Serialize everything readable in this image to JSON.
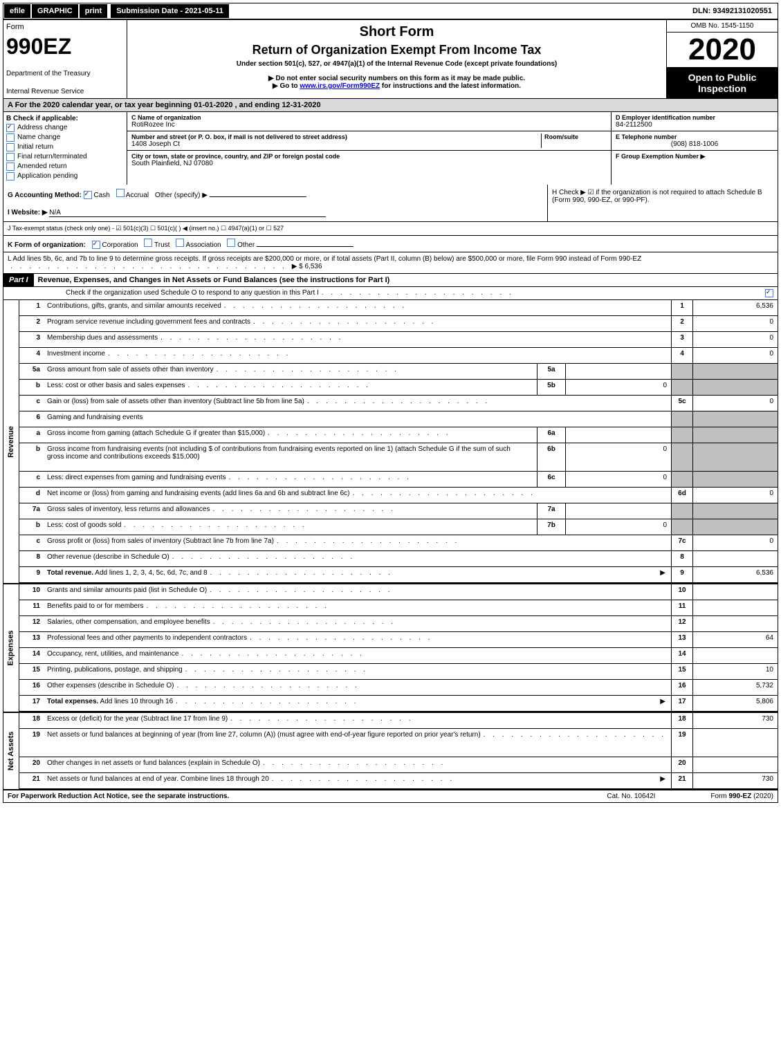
{
  "top": {
    "efile": "efile",
    "graphic": "GRAPHIC",
    "print": "print",
    "submission": "Submission Date - 2021-05-11",
    "dln": "DLN: 93492131020551"
  },
  "header": {
    "form_word": "Form",
    "form_no": "990EZ",
    "dept1": "Department of the Treasury",
    "dept2": "Internal Revenue Service",
    "short_form": "Short Form",
    "main_title": "Return of Organization Exempt From Income Tax",
    "under": "Under section 501(c), 527, or 4947(a)(1) of the Internal Revenue Code (except private foundations)",
    "ssn": "▶ Do not enter social security numbers on this form as it may be made public.",
    "goto_pre": "▶ Go to ",
    "goto_link": "www.irs.gov/Form990EZ",
    "goto_post": " for instructions and the latest information.",
    "omb": "OMB No. 1545-1150",
    "year": "2020",
    "inspect1": "Open to Public",
    "inspect2": "Inspection"
  },
  "row_a": "A  For the 2020 calendar year, or tax year beginning 01-01-2020 , and ending 12-31-2020",
  "col_b": {
    "head": "B  Check if applicable:",
    "items": [
      "Address change",
      "Name change",
      "Initial return",
      "Final return/terminated",
      "Amended return",
      "Application pending"
    ]
  },
  "col_c": {
    "name_label": "C Name of organization",
    "name": "RotiRozee Inc",
    "addr_label": "Number and street (or P. O. box, if mail is not delivered to street address)",
    "addr": "1408 Joseph Ct",
    "room_label": "Room/suite",
    "city_label": "City or town, state or province, country, and ZIP or foreign postal code",
    "city": "South Plainfield, NJ  07080"
  },
  "col_d": {
    "ein_label": "D Employer identification number",
    "ein": "84-2112500",
    "phone_label": "E Telephone number",
    "phone": "(908) 818-1006",
    "group_label": "F Group Exemption Number ▶"
  },
  "g": {
    "acct": "G Accounting Method:",
    "cash": "Cash",
    "accrual": "Accrual",
    "other": "Other (specify) ▶",
    "website_label": "I Website: ▶",
    "website": "N/A",
    "h_text": "H  Check ▶ ☑ if the organization is not required to attach Schedule B (Form 990, 990-EZ, or 990-PF)."
  },
  "j": "J Tax-exempt status (check only one) - ☑ 501(c)(3)  ☐ 501(c)(  ) ◀ (insert no.)  ☐ 4947(a)(1) or  ☐ 527",
  "k": {
    "label": "K Form of organization:",
    "corp": "Corporation",
    "trust": "Trust",
    "assoc": "Association",
    "other": "Other"
  },
  "l": {
    "text": "L Add lines 5b, 6c, and 7b to line 9 to determine gross receipts. If gross receipts are $200,000 or more, or if total assets (Part II, column (B) below) are $500,000 or more, file Form 990 instead of Form 990-EZ",
    "amt": "▶ $ 6,536"
  },
  "part1": {
    "label": "Part I",
    "title": "Revenue, Expenses, and Changes in Net Assets or Fund Balances (see the instructions for Part I)",
    "check": "Check if the organization used Schedule O to respond to any question in this Part I"
  },
  "revenue": [
    {
      "n": "1",
      "d": "Contributions, gifts, grants, and similar amounts received",
      "num": "1",
      "amt": "6,536"
    },
    {
      "n": "2",
      "d": "Program service revenue including government fees and contracts",
      "num": "2",
      "amt": "0"
    },
    {
      "n": "3",
      "d": "Membership dues and assessments",
      "num": "3",
      "amt": "0"
    },
    {
      "n": "4",
      "d": "Investment income",
      "num": "4",
      "amt": "0"
    },
    {
      "n": "5a",
      "d": "Gross amount from sale of assets other than inventory",
      "box": "5a",
      "bval": "",
      "gray": true
    },
    {
      "n": "b",
      "d": "Less: cost or other basis and sales expenses",
      "box": "5b",
      "bval": "0",
      "gray": true
    },
    {
      "n": "c",
      "d": "Gain or (loss) from sale of assets other than inventory (Subtract line 5b from line 5a)",
      "num": "5c",
      "amt": "0"
    },
    {
      "n": "6",
      "d": "Gaming and fundraising events",
      "gray": true,
      "noinner": true
    },
    {
      "n": "a",
      "d": "Gross income from gaming (attach Schedule G if greater than $15,000)",
      "box": "6a",
      "bval": "",
      "gray": true
    },
    {
      "n": "b",
      "d": "Gross income from fundraising events (not including $                       of contributions from fundraising events reported on line 1) (attach Schedule G if the sum of such gross income and contributions exceeds $15,000)",
      "box": "6b",
      "bval": "0",
      "gray": true,
      "tall": true
    },
    {
      "n": "c",
      "d": "Less: direct expenses from gaming and fundraising events",
      "box": "6c",
      "bval": "0",
      "gray": true
    },
    {
      "n": "d",
      "d": "Net income or (loss) from gaming and fundraising events (add lines 6a and 6b and subtract line 6c)",
      "num": "6d",
      "amt": "0"
    },
    {
      "n": "7a",
      "d": "Gross sales of inventory, less returns and allowances",
      "box": "7a",
      "bval": "",
      "gray": true
    },
    {
      "n": "b",
      "d": "Less: cost of goods sold",
      "box": "7b",
      "bval": "0",
      "gray": true
    },
    {
      "n": "c",
      "d": "Gross profit or (loss) from sales of inventory (Subtract line 7b from line 7a)",
      "num": "7c",
      "amt": "0"
    },
    {
      "n": "8",
      "d": "Other revenue (describe in Schedule O)",
      "num": "8",
      "amt": ""
    },
    {
      "n": "9",
      "d": "Total revenue. Add lines 1, 2, 3, 4, 5c, 6d, 7c, and 8",
      "num": "9",
      "amt": "6,536",
      "bold": true,
      "arrow": true
    }
  ],
  "expenses": [
    {
      "n": "10",
      "d": "Grants and similar amounts paid (list in Schedule O)",
      "num": "10",
      "amt": ""
    },
    {
      "n": "11",
      "d": "Benefits paid to or for members",
      "num": "11",
      "amt": ""
    },
    {
      "n": "12",
      "d": "Salaries, other compensation, and employee benefits",
      "num": "12",
      "amt": ""
    },
    {
      "n": "13",
      "d": "Professional fees and other payments to independent contractors",
      "num": "13",
      "amt": "64"
    },
    {
      "n": "14",
      "d": "Occupancy, rent, utilities, and maintenance",
      "num": "14",
      "amt": ""
    },
    {
      "n": "15",
      "d": "Printing, publications, postage, and shipping",
      "num": "15",
      "amt": "10"
    },
    {
      "n": "16",
      "d": "Other expenses (describe in Schedule O)",
      "num": "16",
      "amt": "5,732"
    },
    {
      "n": "17",
      "d": "Total expenses. Add lines 10 through 16",
      "num": "17",
      "amt": "5,806",
      "bold": true,
      "arrow": true
    }
  ],
  "netassets": [
    {
      "n": "18",
      "d": "Excess or (deficit) for the year (Subtract line 17 from line 9)",
      "num": "18",
      "amt": "730"
    },
    {
      "n": "19",
      "d": "Net assets or fund balances at beginning of year (from line 27, column (A)) (must agree with end-of-year figure reported on prior year's return)",
      "num": "19",
      "amt": "",
      "tall": true
    },
    {
      "n": "20",
      "d": "Other changes in net assets or fund balances (explain in Schedule O)",
      "num": "20",
      "amt": ""
    },
    {
      "n": "21",
      "d": "Net assets or fund balances at end of year. Combine lines 18 through 20",
      "num": "21",
      "amt": "730",
      "arrow": true
    }
  ],
  "side": {
    "rev": "Revenue",
    "exp": "Expenses",
    "na": "Net Assets"
  },
  "footer": {
    "pra": "For Paperwork Reduction Act Notice, see the separate instructions.",
    "cat": "Cat. No. 10642I",
    "form": "Form 990-EZ (2020)"
  },
  "colors": {
    "black": "#000000",
    "white": "#ffffff",
    "gray": "#c0c0c0",
    "hdr_gray": "#d9d9d9",
    "blue": "#3b82f6"
  }
}
